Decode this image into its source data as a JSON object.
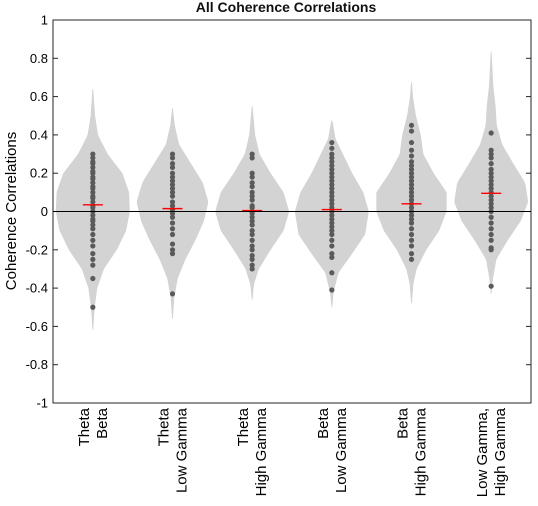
{
  "chart_data": {
    "type": "violin",
    "title": "All Coherence Correlations",
    "xlabel": "",
    "ylabel": "Coherence Correlations",
    "ylim": [
      -1,
      1
    ],
    "yticks": [
      "-1",
      "-0.8",
      "-0.6",
      "-0.4",
      "-0.2",
      "0",
      "0.2",
      "0.4",
      "0.6",
      "0.8",
      "1"
    ],
    "grid": false,
    "legend": "none",
    "colors": {
      "violin": "#d3d3d3",
      "points": "#5a5a5a",
      "mean_marker": "#ff0000",
      "zero_line": "#000000"
    },
    "categories": [
      {
        "label_line1": "Theta",
        "label_line2": "Beta",
        "mean": 0.035,
        "tails": [
          -0.62,
          0.64
        ],
        "width_profile": [
          [
            -0.62,
            0.01
          ],
          [
            -0.5,
            0.05
          ],
          [
            -0.4,
            0.12
          ],
          [
            -0.3,
            0.3
          ],
          [
            -0.2,
            0.65
          ],
          [
            -0.1,
            0.9
          ],
          [
            0.0,
            1.0
          ],
          [
            0.1,
            0.98
          ],
          [
            0.2,
            0.8
          ],
          [
            0.3,
            0.4
          ],
          [
            0.4,
            0.14
          ],
          [
            0.5,
            0.06
          ],
          [
            0.64,
            0.01
          ]
        ],
        "points": [
          0.3,
          0.28,
          0.26,
          0.25,
          0.23,
          0.21,
          0.2,
          0.18,
          0.17,
          0.15,
          0.13,
          0.12,
          0.1,
          0.08,
          0.07,
          0.05,
          0.03,
          0.02,
          0.0,
          -0.02,
          -0.04,
          -0.05,
          -0.07,
          -0.09,
          -0.12,
          -0.15,
          -0.18,
          -0.22,
          -0.25,
          -0.28,
          -0.35,
          -0.5
        ]
      },
      {
        "label_line1": "Theta",
        "label_line2": "Low Gamma",
        "mean": 0.015,
        "tails": [
          -0.56,
          0.54
        ],
        "width_profile": [
          [
            -0.56,
            0.01
          ],
          [
            -0.45,
            0.05
          ],
          [
            -0.35,
            0.14
          ],
          [
            -0.25,
            0.35
          ],
          [
            -0.15,
            0.62
          ],
          [
            -0.05,
            0.85
          ],
          [
            0.05,
            0.97
          ],
          [
            0.15,
            0.82
          ],
          [
            0.25,
            0.5
          ],
          [
            0.35,
            0.18
          ],
          [
            0.45,
            0.06
          ],
          [
            0.54,
            0.01
          ]
        ],
        "points": [
          0.3,
          0.28,
          0.25,
          0.23,
          0.2,
          0.18,
          0.16,
          0.14,
          0.12,
          0.1,
          0.08,
          0.05,
          0.03,
          0.01,
          -0.01,
          -0.03,
          -0.06,
          -0.09,
          -0.12,
          -0.17,
          -0.2,
          -0.22,
          -0.43
        ]
      },
      {
        "label_line1": "Theta",
        "label_line2": "High Gamma",
        "mean": 0.005,
        "tails": [
          -0.46,
          0.55
        ],
        "width_profile": [
          [
            -0.46,
            0.01
          ],
          [
            -0.38,
            0.05
          ],
          [
            -0.3,
            0.18
          ],
          [
            -0.2,
            0.5
          ],
          [
            -0.1,
            0.85
          ],
          [
            0.0,
            1.0
          ],
          [
            0.1,
            0.85
          ],
          [
            0.2,
            0.5
          ],
          [
            0.3,
            0.2
          ],
          [
            0.4,
            0.08
          ],
          [
            0.55,
            0.01
          ]
        ],
        "points": [
          0.3,
          0.28,
          0.2,
          0.18,
          0.15,
          0.13,
          0.1,
          0.08,
          0.06,
          0.03,
          0.02,
          0.0,
          -0.01,
          -0.03,
          -0.05,
          -0.07,
          -0.1,
          -0.12,
          -0.15,
          -0.18,
          -0.2,
          -0.23,
          -0.25,
          -0.28,
          -0.3
        ]
      },
      {
        "label_line1": "Beta",
        "label_line2": "Low Gamma",
        "mean": 0.01,
        "tails": [
          -0.5,
          0.48
        ],
        "width_profile": [
          [
            -0.5,
            0.01
          ],
          [
            -0.42,
            0.05
          ],
          [
            -0.32,
            0.18
          ],
          [
            -0.22,
            0.55
          ],
          [
            -0.12,
            0.9
          ],
          [
            0.0,
            1.0
          ],
          [
            0.1,
            0.85
          ],
          [
            0.2,
            0.55
          ],
          [
            0.3,
            0.3
          ],
          [
            0.38,
            0.1
          ],
          [
            0.48,
            0.01
          ]
        ],
        "points": [
          0.36,
          0.33,
          0.3,
          0.28,
          0.26,
          0.24,
          0.22,
          0.2,
          0.18,
          0.16,
          0.14,
          0.12,
          0.1,
          0.08,
          0.06,
          0.04,
          0.02,
          0.0,
          -0.02,
          -0.04,
          -0.06,
          -0.08,
          -0.1,
          -0.12,
          -0.15,
          -0.18,
          -0.22,
          -0.24,
          -0.32,
          -0.41
        ]
      },
      {
        "label_line1": "Beta",
        "label_line2": "High Gamma",
        "mean": 0.04,
        "tails": [
          -0.48,
          0.68
        ],
        "width_profile": [
          [
            -0.48,
            0.01
          ],
          [
            -0.38,
            0.05
          ],
          [
            -0.3,
            0.14
          ],
          [
            -0.2,
            0.4
          ],
          [
            -0.1,
            0.75
          ],
          [
            0.0,
            0.95
          ],
          [
            0.1,
            0.95
          ],
          [
            0.2,
            0.6
          ],
          [
            0.3,
            0.32
          ],
          [
            0.4,
            0.25
          ],
          [
            0.5,
            0.12
          ],
          [
            0.6,
            0.04
          ],
          [
            0.68,
            0.01
          ]
        ],
        "points": [
          0.45,
          0.42,
          0.36,
          0.32,
          0.29,
          0.26,
          0.24,
          0.22,
          0.2,
          0.18,
          0.16,
          0.14,
          0.12,
          0.1,
          0.08,
          0.06,
          0.04,
          0.02,
          0.0,
          -0.02,
          -0.04,
          -0.06,
          -0.09,
          -0.12,
          -0.15,
          -0.18,
          -0.22,
          -0.25
        ]
      },
      {
        "label_line1": "Low Gamma,",
        "label_line2": "High Gamma",
        "mean": 0.095,
        "tails": [
          -0.43,
          0.84
        ],
        "width_profile": [
          [
            -0.43,
            0.01
          ],
          [
            -0.35,
            0.05
          ],
          [
            -0.25,
            0.14
          ],
          [
            -0.15,
            0.45
          ],
          [
            -0.05,
            0.8
          ],
          [
            0.05,
            1.0
          ],
          [
            0.15,
            0.92
          ],
          [
            0.25,
            0.6
          ],
          [
            0.35,
            0.3
          ],
          [
            0.45,
            0.15
          ],
          [
            0.55,
            0.12
          ],
          [
            0.65,
            0.06
          ],
          [
            0.84,
            0.01
          ]
        ],
        "points": [
          0.41,
          0.32,
          0.3,
          0.28,
          0.25,
          0.22,
          0.2,
          0.18,
          0.16,
          0.14,
          0.12,
          0.1,
          0.08,
          0.06,
          0.04,
          0.02,
          0.0,
          -0.03,
          -0.06,
          -0.09,
          -0.12,
          -0.15,
          -0.19,
          -0.2,
          -0.39
        ]
      }
    ]
  }
}
